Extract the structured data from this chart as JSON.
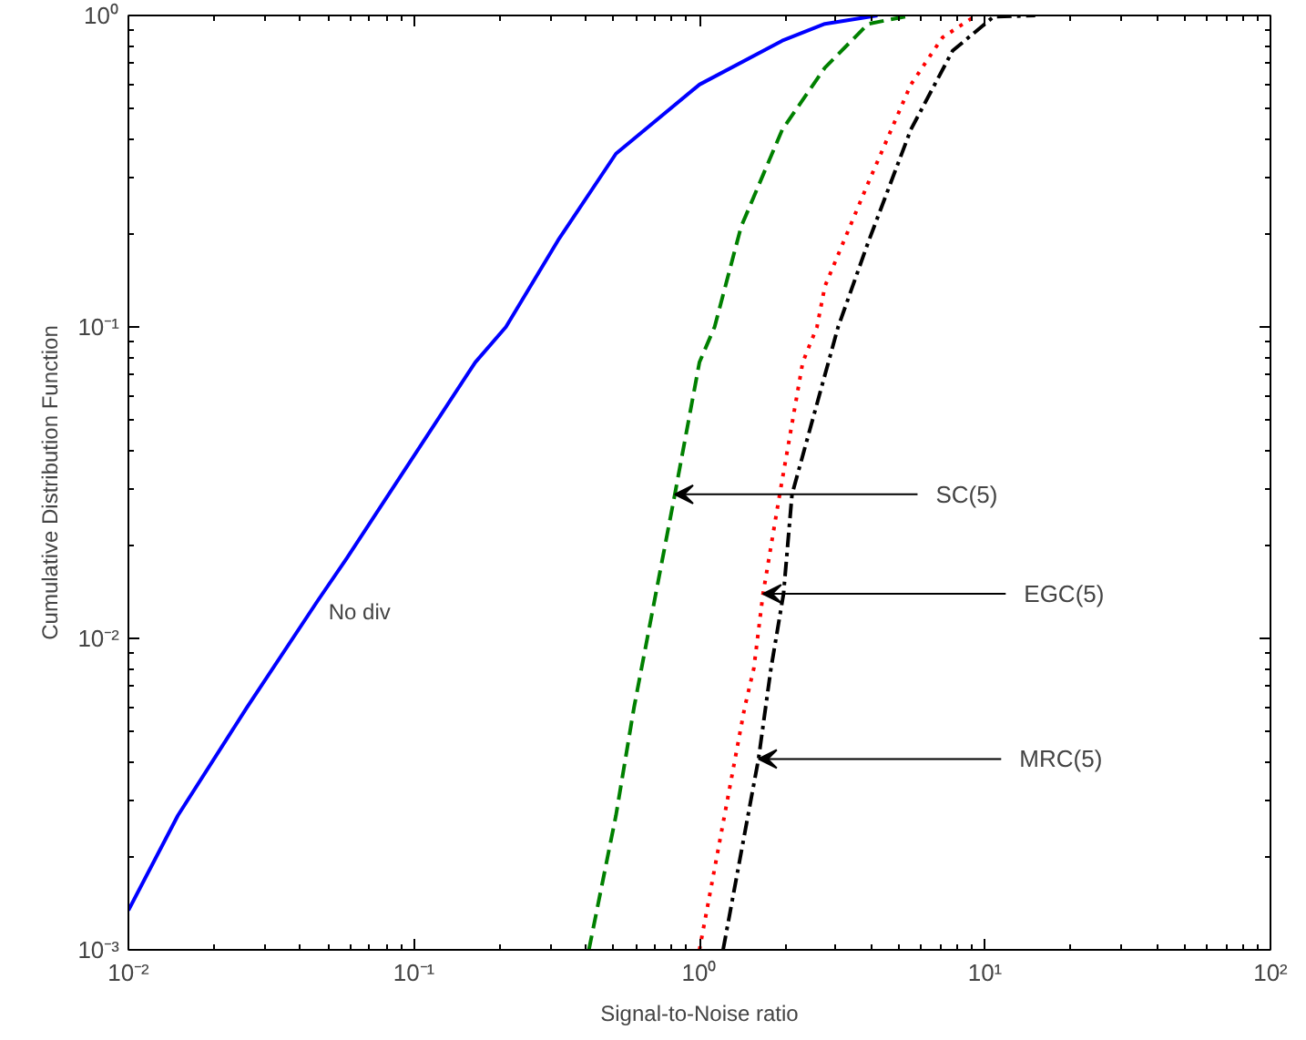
{
  "chart_data": {
    "type": "line",
    "xlabel": "Signal-to-Noise ratio",
    "ylabel": "Cumulative Distribution Function",
    "log": "xy",
    "grid": false,
    "legend": false,
    "xlim": [
      0.01,
      100
    ],
    "ylim": [
      0.001,
      1
    ],
    "xticks": [
      {
        "value": 0.01,
        "label": "10⁻²"
      },
      {
        "value": 0.1,
        "label": "10⁻¹"
      },
      {
        "value": 1,
        "label": "10⁰"
      },
      {
        "value": 10,
        "label": "10¹"
      },
      {
        "value": 100,
        "label": "10²"
      }
    ],
    "yticks": [
      {
        "value": 0.001,
        "label": "10⁻³"
      },
      {
        "value": 0.01,
        "label": "10⁻²"
      },
      {
        "value": 0.1,
        "label": "10⁻¹"
      },
      {
        "value": 1,
        "label": "10⁰"
      }
    ],
    "series": [
      {
        "name": "No div",
        "color": "#0000ff",
        "line_style": "solid",
        "x": [
          0.01,
          0.0149,
          0.026,
          0.046,
          0.058,
          0.164,
          0.21,
          0.32,
          0.51,
          1.0,
          1.95,
          2.75,
          4.2
        ],
        "values": [
          0.00134,
          0.0027,
          0.006,
          0.0132,
          0.018,
          0.077,
          0.1,
          0.19,
          0.36,
          0.6,
          0.83,
          0.94,
          1.0
        ]
      },
      {
        "color": "#008000",
        "line_style": "dashed",
        "x": [
          0.41,
          0.51,
          0.59,
          0.82,
          1.0,
          1.13,
          1.4,
          1.95,
          2.75,
          3.9,
          5.5
        ],
        "values": [
          0.001,
          0.0027,
          0.006,
          0.029,
          0.077,
          0.1,
          0.21,
          0.43,
          0.68,
          0.94,
          1.0
        ]
      },
      {
        "color": "#ff0000",
        "line_style": "dotted",
        "x": [
          1.0,
          1.44,
          1.55,
          1.67,
          1.91,
          2.3,
          2.58,
          2.75,
          3.9,
          5.5,
          7.1,
          9.3
        ],
        "values": [
          0.001,
          0.006,
          0.008,
          0.0139,
          0.029,
          0.077,
          0.1,
          0.135,
          0.29,
          0.6,
          0.85,
          1.0
        ]
      },
      {
        "color": "#000000",
        "line_style": "dashdot",
        "x": [
          1.21,
          1.61,
          1.78,
          1.97,
          2.11,
          3.06,
          3.9,
          5.5,
          7.7,
          10.7,
          15
        ],
        "values": [
          0.001,
          0.0041,
          0.008,
          0.0139,
          0.029,
          0.1,
          0.187,
          0.43,
          0.77,
          0.99,
          1.0
        ]
      }
    ],
    "annotations": [
      {
        "text": "SC(5)",
        "x": 0.82,
        "y": 0.029
      },
      {
        "text": "EGC(5)",
        "x": 1.67,
        "y": 0.0139
      },
      {
        "text": "MRC(5)",
        "x": 1.61,
        "y": 0.0041
      }
    ]
  }
}
